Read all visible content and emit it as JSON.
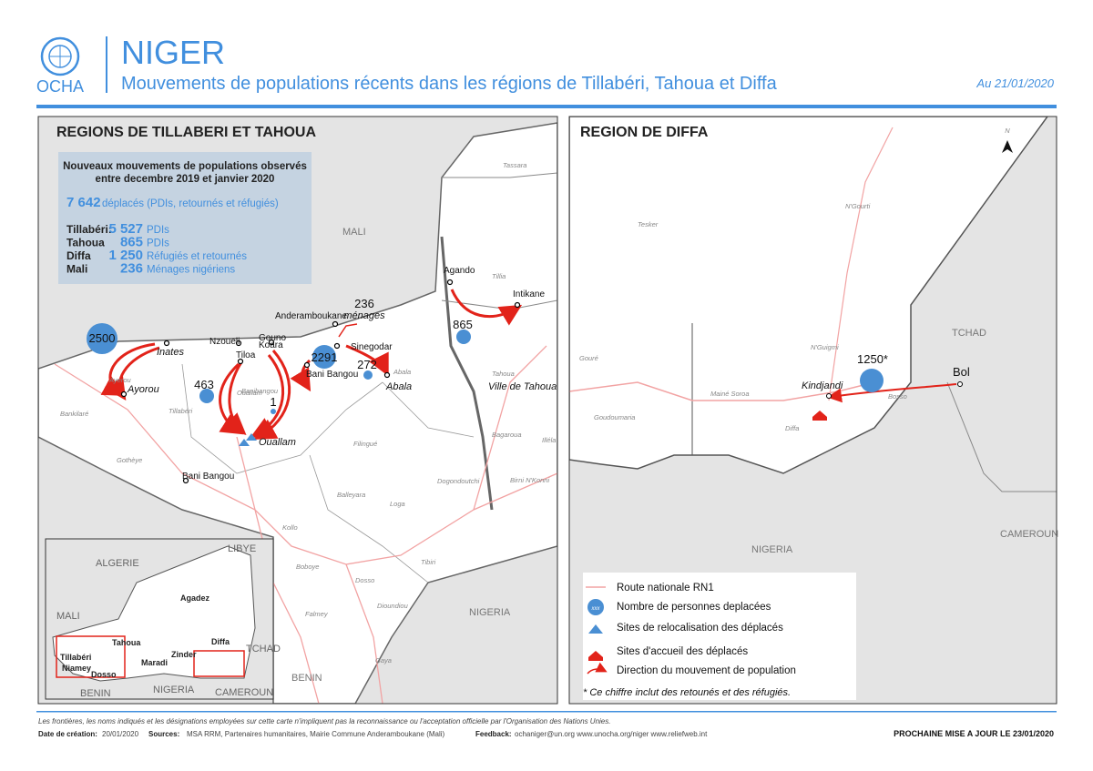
{
  "header": {
    "org": "OCHA",
    "title": "NIGER",
    "subtitle": "Mouvements de populations récents dans les régions de Tillabéri, Tahoua et Diffa",
    "date": "Au 21/01/2020"
  },
  "left_map": {
    "title": "REGIONS DE TILLABERI ET TAHOUA",
    "summary": {
      "heading": [
        "Nouveaux mouvements de populations observés",
        "entre decembre 2019 et janvier 2020"
      ],
      "total": "7 642",
      "total_text": "déplacés (PDIs, retournés et réfugiés)",
      "rows": [
        {
          "region": "Tillabéri:",
          "value": "5 527",
          "text": "PDIs"
        },
        {
          "region": "Tahoua",
          "value": "865",
          "text": "PDIs"
        },
        {
          "region": "Diffa",
          "value": "1 250",
          "text": "Réfugiés et retournés"
        },
        {
          "region": "Mali",
          "value": "236",
          "text": "Ménages nigériens"
        }
      ]
    },
    "bubbles": [
      "2500",
      "463",
      "1",
      "2291",
      "272",
      "865"
    ],
    "households": [
      "236",
      "ménages"
    ],
    "places": [
      "Inates",
      "Ayorou",
      "Nzoueli",
      "Gouno",
      "Koara",
      "Tiloa",
      "Anderamboukane",
      "Sinegodar",
      "Bani Bangou",
      "Abala",
      "Ouallam",
      "Bani Bangou",
      "Agando",
      "Intikane",
      "Ville de Tahoua"
    ],
    "departments": [
      "Tassara",
      "Tillia",
      "Tahoua",
      "Abala",
      "Banibangou",
      "Ayerou",
      "Ouallam",
      "Tillabéri",
      "Gothèye",
      "Filingué",
      "Bagaroua",
      "Illéla",
      "Birni N'Konni",
      "Dogondoutchi",
      "Loga",
      "Balleyara",
      "Kollo",
      "Boboye",
      "Dosso",
      "Tibiri",
      "Falmey",
      "Gaya",
      "Dioundiou",
      "Bankilaré"
    ],
    "countries": [
      "MALI",
      "NIGERIA",
      "BENIN"
    ],
    "inset": [
      "ALGERIE",
      "LIBYE",
      "MALI",
      "Agadez",
      "Tahoua",
      "Tillabéri",
      "Niamey",
      "Dosso",
      "Maradi",
      "Zinder",
      "Diffa",
      "TCHAD",
      "NIGERIA",
      "BENIN",
      "CAMEROUN"
    ]
  },
  "right_map": {
    "title": "REGION DE DIFFA",
    "north": "N",
    "bubble": "1250*",
    "places": [
      "Kindjandi",
      "Bol"
    ],
    "departments": [
      "Tesker",
      "N'Gourti",
      "Gouré",
      "N'Guigmi",
      "Mainé Soroa",
      "Goudoumaria",
      "Diffa",
      "Bosso"
    ],
    "countries": [
      "TCHAD",
      "NIGERIA",
      "CAMEROUN"
    ],
    "legend": {
      "road": "Route nationale RN1",
      "bubble_sample": "xxx",
      "bubble": "Nombre de personnes deplacées",
      "relocation": "Sites de relocalisation des déplacés",
      "reception": "Sites d'accueil des déplacés",
      "direction": "Direction du mouvement de population"
    },
    "note": "* Ce chiffre inclut des retounés et des réfugiés."
  },
  "footer": {
    "disclaimer": "Les frontières, les noms indiqués et les désignations employées sur cette carte n'impliquent pas la reconnaissance ou l'acceptation officielle par l'Organisation des Nations Unies.",
    "created_label": "Date de création:",
    "created": "20/01/2020",
    "sources_label": "Sources:",
    "sources": "MSA RRM, Partenaires humanitaires, Mairie Commune Anderamboukane (Mali)",
    "feedback_label": "Feedback:",
    "feedback": "ochaniger@un.org  www.unocha.org/niger    www.reliefweb.int",
    "next_update": "PROCHAINE MISE A JOUR LE 23/01/2020"
  }
}
